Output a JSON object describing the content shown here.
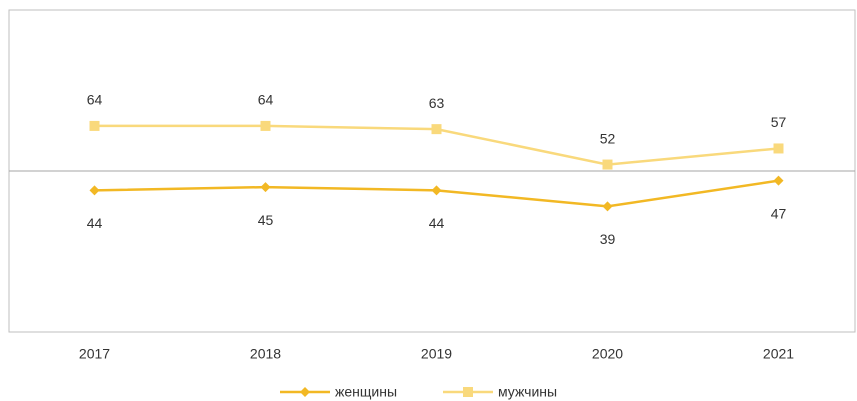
{
  "chart_data": {
    "type": "line",
    "categories": [
      "2017",
      "2018",
      "2019",
      "2020",
      "2021"
    ],
    "series": [
      {
        "name": "женщины",
        "color": "#f2b824",
        "marker": "diamond",
        "label_position": "below",
        "values": [
          44,
          45,
          44,
          39,
          47
        ]
      },
      {
        "name": "мужчины",
        "color": "#f9d97c",
        "marker": "square",
        "label_position": "above",
        "values": [
          64,
          64,
          63,
          52,
          57
        ]
      }
    ],
    "ylim": [
      0,
      100
    ],
    "x_axis_at": 50,
    "legend": "bottom"
  }
}
